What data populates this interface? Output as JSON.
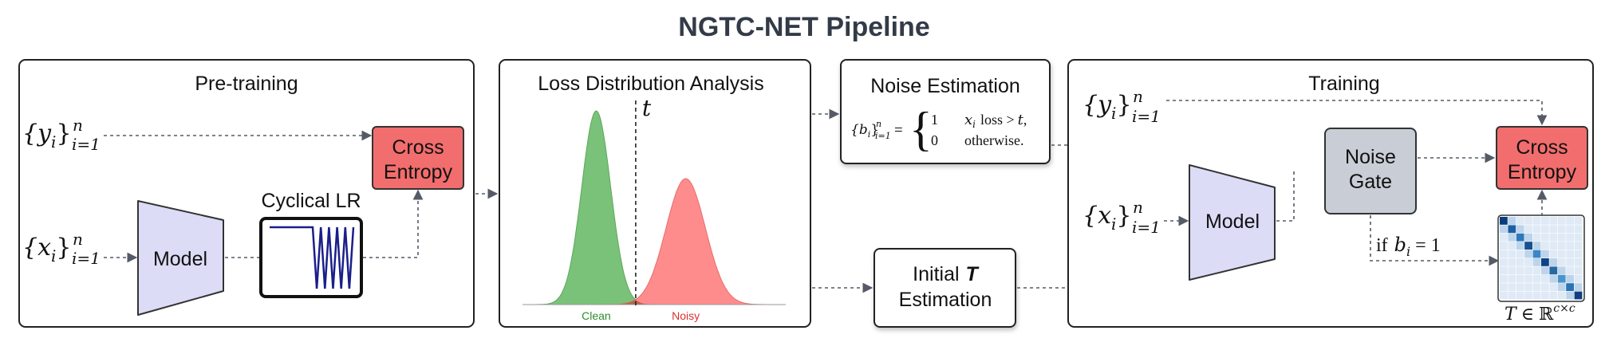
{
  "title": "NGTC-NET Pipeline",
  "pretraining": {
    "header": "Pre-training",
    "y_set": "{y",
    "x_set": "{x",
    "set_sub_i": "i",
    "set_close": "}",
    "set_sup_n": "n",
    "set_sub_range": "i=1",
    "model": "Model",
    "lr_label": "Cyclical LR",
    "ce_line1": "Cross",
    "ce_line2": "Entropy"
  },
  "loss_analysis": {
    "header": "Loss Distribution Analysis",
    "threshold": "t",
    "clean": "Clean",
    "noisy": "Noisy"
  },
  "noise_estimation": {
    "header": "Noise Estimation",
    "lhs_b": "{b",
    "lhs_sub": "i",
    "lhs_close": "}",
    "lhs_sup": "n",
    "lhs_range": "i=1",
    "equals": "=",
    "case1_value": "1",
    "case1_var": "x",
    "case1_sub": "i",
    "case1_cond": "loss >",
    "case1_t": "t",
    "case1_tail": ",",
    "case2_value": "0",
    "case2_cond": "otherwise."
  },
  "initial_t": {
    "line1_prefix": "Initial",
    "line1_symbol": "T",
    "line2": "Estimation"
  },
  "training": {
    "header": "Training",
    "y_set": "{y",
    "x_set": "{x",
    "set_sub_i": "i",
    "set_close": "}",
    "set_sup_n": "n",
    "set_sub_range": "i=1",
    "model": "Model",
    "gate_line1": "Noise",
    "gate_line2": "Gate",
    "ce_line1": "Cross",
    "ce_line2": "Entropy",
    "cond_if": "if",
    "cond_b": "b",
    "cond_sub": "i",
    "cond_eq": "= 1",
    "matrix_T": "T",
    "matrix_in": "∈",
    "matrix_R": "ℝ",
    "matrix_sup": "c×c"
  },
  "colors": {
    "cross_entropy": "#f26d6d",
    "model": "#dcdcf7",
    "noise_gate": "#c8cdd6",
    "clean": "#6cbb6c",
    "noisy": "#ff7f7f",
    "overlap": "#b4624a",
    "title": "#333b48",
    "arrow": "#555a66"
  },
  "lr_schedule": {
    "constant_level": 1.0,
    "cycles": 5,
    "min_level": 0.0
  },
  "distributions": {
    "clean": {
      "mean": 0.28,
      "std": 0.055,
      "peak": 1.0
    },
    "noisy": {
      "mean": 0.62,
      "std": 0.075,
      "peak": 0.65
    },
    "threshold": 0.43
  }
}
